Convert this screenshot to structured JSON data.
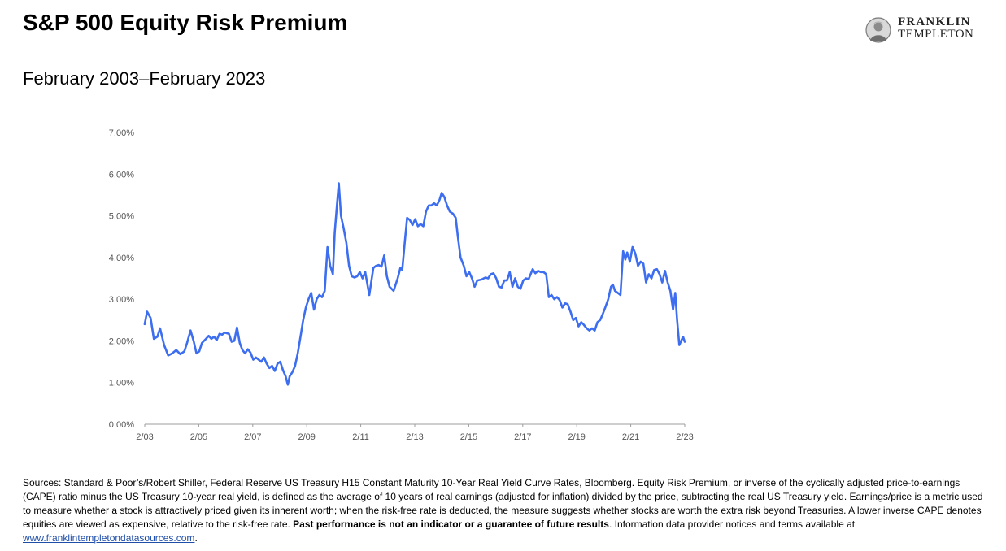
{
  "header": {
    "title": "S&P 500 Equity Risk Premium",
    "subtitle": "February 2003–February 2023"
  },
  "logo": {
    "line1": "FRANKLIN",
    "line2": "TEMPLETON",
    "icon": "franklin-medallion-icon"
  },
  "colors": {
    "line": "#3d6ef0",
    "axis": "#9e9e9e",
    "text": "#555555"
  },
  "chart_data": {
    "type": "line",
    "title": "",
    "xlabel": "",
    "ylabel": "",
    "ylim": [
      0,
      7
    ],
    "y_ticks": [
      "0.00%",
      "1.00%",
      "2.00%",
      "3.00%",
      "4.00%",
      "5.00%",
      "6.00%",
      "7.00%"
    ],
    "x_ticks": [
      "2/03",
      "2/05",
      "2/07",
      "2/09",
      "2/11",
      "2/13",
      "2/15",
      "2/17",
      "2/19",
      "2/21",
      "2/23"
    ],
    "xlim": [
      2003.083,
      2023.083
    ],
    "grid": false,
    "legend": "none",
    "series": [
      {
        "values": [
          [
            2003.08,
            2.4
          ],
          [
            2003.17,
            2.7
          ],
          [
            2003.3,
            2.55
          ],
          [
            2003.42,
            2.05
          ],
          [
            2003.55,
            2.1
          ],
          [
            2003.65,
            2.3
          ],
          [
            2003.8,
            1.9
          ],
          [
            2003.95,
            1.65
          ],
          [
            2004.1,
            1.7
          ],
          [
            2004.25,
            1.78
          ],
          [
            2004.4,
            1.68
          ],
          [
            2004.55,
            1.75
          ],
          [
            2004.65,
            1.95
          ],
          [
            2004.78,
            2.25
          ],
          [
            2004.9,
            1.98
          ],
          [
            2005.0,
            1.7
          ],
          [
            2005.1,
            1.75
          ],
          [
            2005.2,
            1.95
          ],
          [
            2005.35,
            2.05
          ],
          [
            2005.45,
            2.12
          ],
          [
            2005.55,
            2.05
          ],
          [
            2005.65,
            2.1
          ],
          [
            2005.75,
            2.02
          ],
          [
            2005.85,
            2.17
          ],
          [
            2005.95,
            2.15
          ],
          [
            2006.05,
            2.2
          ],
          [
            2006.2,
            2.17
          ],
          [
            2006.3,
            1.98
          ],
          [
            2006.4,
            2.0
          ],
          [
            2006.5,
            2.32
          ],
          [
            2006.6,
            1.95
          ],
          [
            2006.7,
            1.78
          ],
          [
            2006.8,
            1.7
          ],
          [
            2006.9,
            1.8
          ],
          [
            2007.0,
            1.72
          ],
          [
            2007.1,
            1.55
          ],
          [
            2007.2,
            1.6
          ],
          [
            2007.3,
            1.55
          ],
          [
            2007.4,
            1.5
          ],
          [
            2007.5,
            1.6
          ],
          [
            2007.6,
            1.45
          ],
          [
            2007.7,
            1.35
          ],
          [
            2007.8,
            1.4
          ],
          [
            2007.9,
            1.28
          ],
          [
            2008.0,
            1.45
          ],
          [
            2008.1,
            1.5
          ],
          [
            2008.2,
            1.3
          ],
          [
            2008.3,
            1.15
          ],
          [
            2008.38,
            0.95
          ],
          [
            2008.45,
            1.15
          ],
          [
            2008.55,
            1.25
          ],
          [
            2008.65,
            1.4
          ],
          [
            2008.75,
            1.7
          ],
          [
            2008.85,
            2.1
          ],
          [
            2008.95,
            2.5
          ],
          [
            2009.05,
            2.8
          ],
          [
            2009.15,
            3.0
          ],
          [
            2009.25,
            3.15
          ],
          [
            2009.35,
            2.75
          ],
          [
            2009.45,
            3.0
          ],
          [
            2009.55,
            3.1
          ],
          [
            2009.65,
            3.05
          ],
          [
            2009.75,
            3.2
          ],
          [
            2009.85,
            4.25
          ],
          [
            2009.95,
            3.8
          ],
          [
            2010.05,
            3.6
          ],
          [
            2010.12,
            4.6
          ],
          [
            2010.2,
            5.25
          ],
          [
            2010.27,
            5.78
          ],
          [
            2010.35,
            5.0
          ],
          [
            2010.45,
            4.7
          ],
          [
            2010.55,
            4.35
          ],
          [
            2010.65,
            3.8
          ],
          [
            2010.75,
            3.55
          ],
          [
            2010.85,
            3.52
          ],
          [
            2010.95,
            3.55
          ],
          [
            2011.05,
            3.65
          ],
          [
            2011.15,
            3.5
          ],
          [
            2011.25,
            3.65
          ],
          [
            2011.4,
            3.1
          ],
          [
            2011.55,
            3.75
          ],
          [
            2011.65,
            3.8
          ],
          [
            2011.75,
            3.82
          ],
          [
            2011.85,
            3.78
          ],
          [
            2011.95,
            4.05
          ],
          [
            2012.05,
            3.55
          ],
          [
            2012.15,
            3.3
          ],
          [
            2012.3,
            3.2
          ],
          [
            2012.45,
            3.5
          ],
          [
            2012.55,
            3.75
          ],
          [
            2012.62,
            3.7
          ],
          [
            2012.72,
            4.4
          ],
          [
            2012.8,
            4.95
          ],
          [
            2012.9,
            4.9
          ],
          [
            2013.0,
            4.78
          ],
          [
            2013.1,
            4.92
          ],
          [
            2013.2,
            4.75
          ],
          [
            2013.3,
            4.8
          ],
          [
            2013.4,
            4.75
          ],
          [
            2013.5,
            5.1
          ],
          [
            2013.6,
            5.25
          ],
          [
            2013.7,
            5.25
          ],
          [
            2013.8,
            5.3
          ],
          [
            2013.9,
            5.25
          ],
          [
            2014.0,
            5.38
          ],
          [
            2014.08,
            5.55
          ],
          [
            2014.18,
            5.45
          ],
          [
            2014.28,
            5.25
          ],
          [
            2014.38,
            5.1
          ],
          [
            2014.5,
            5.05
          ],
          [
            2014.6,
            4.95
          ],
          [
            2014.68,
            4.5
          ],
          [
            2014.78,
            4.0
          ],
          [
            2014.9,
            3.8
          ],
          [
            2015.0,
            3.55
          ],
          [
            2015.1,
            3.65
          ],
          [
            2015.2,
            3.5
          ],
          [
            2015.3,
            3.3
          ],
          [
            2015.4,
            3.45
          ],
          [
            2015.55,
            3.47
          ],
          [
            2015.7,
            3.52
          ],
          [
            2015.8,
            3.5
          ],
          [
            2015.9,
            3.6
          ],
          [
            2016.0,
            3.62
          ],
          [
            2016.1,
            3.5
          ],
          [
            2016.2,
            3.3
          ],
          [
            2016.3,
            3.28
          ],
          [
            2016.4,
            3.45
          ],
          [
            2016.5,
            3.45
          ],
          [
            2016.6,
            3.65
          ],
          [
            2016.7,
            3.3
          ],
          [
            2016.8,
            3.5
          ],
          [
            2016.9,
            3.3
          ],
          [
            2017.0,
            3.25
          ],
          [
            2017.1,
            3.45
          ],
          [
            2017.2,
            3.5
          ],
          [
            2017.3,
            3.48
          ],
          [
            2017.45,
            3.72
          ],
          [
            2017.55,
            3.62
          ],
          [
            2017.65,
            3.68
          ],
          [
            2017.75,
            3.65
          ],
          [
            2017.85,
            3.65
          ],
          [
            2017.95,
            3.6
          ],
          [
            2018.05,
            3.05
          ],
          [
            2018.15,
            3.1
          ],
          [
            2018.25,
            3.0
          ],
          [
            2018.35,
            3.05
          ],
          [
            2018.45,
            2.98
          ],
          [
            2018.55,
            2.8
          ],
          [
            2018.65,
            2.9
          ],
          [
            2018.75,
            2.88
          ],
          [
            2018.85,
            2.7
          ],
          [
            2018.95,
            2.5
          ],
          [
            2019.05,
            2.55
          ],
          [
            2019.15,
            2.35
          ],
          [
            2019.25,
            2.45
          ],
          [
            2019.35,
            2.38
          ],
          [
            2019.45,
            2.3
          ],
          [
            2019.55,
            2.25
          ],
          [
            2019.65,
            2.3
          ],
          [
            2019.75,
            2.25
          ],
          [
            2019.85,
            2.45
          ],
          [
            2019.95,
            2.5
          ],
          [
            2020.05,
            2.65
          ],
          [
            2020.15,
            2.82
          ],
          [
            2020.25,
            3.0
          ],
          [
            2020.35,
            3.3
          ],
          [
            2020.42,
            3.35
          ],
          [
            2020.5,
            3.2
          ],
          [
            2020.6,
            3.15
          ],
          [
            2020.7,
            3.1
          ],
          [
            2020.8,
            4.15
          ],
          [
            2020.88,
            3.95
          ],
          [
            2020.95,
            4.12
          ],
          [
            2021.05,
            3.9
          ],
          [
            2021.15,
            4.25
          ],
          [
            2021.25,
            4.1
          ],
          [
            2021.35,
            3.8
          ],
          [
            2021.45,
            3.9
          ],
          [
            2021.55,
            3.85
          ],
          [
            2021.65,
            3.4
          ],
          [
            2021.75,
            3.6
          ],
          [
            2021.85,
            3.5
          ],
          [
            2021.95,
            3.7
          ],
          [
            2022.05,
            3.72
          ],
          [
            2022.15,
            3.6
          ],
          [
            2022.25,
            3.4
          ],
          [
            2022.35,
            3.68
          ],
          [
            2022.45,
            3.4
          ],
          [
            2022.55,
            3.2
          ],
          [
            2022.65,
            2.75
          ],
          [
            2022.73,
            3.15
          ],
          [
            2022.8,
            2.5
          ],
          [
            2022.88,
            1.9
          ],
          [
            2022.95,
            2.0
          ],
          [
            2023.02,
            2.1
          ],
          [
            2023.083,
            1.98
          ]
        ]
      }
    ]
  },
  "footer": {
    "sources_main": "Sources: Standard & Poor’s/Robert Shiller, Federal Reserve US Treasury H15 Constant Maturity 10-Year Real Yield Curve Rates, Bloomberg.  Equity Risk Premium, or inverse of the cyclically adjusted price-to-earnings (CAPE) ratio minus the US Treasury 10-year real yield, is defined as the average of 10 years of real earnings (adjusted for inflation) divided by the price, subtracting the real US Treasury yield. Earnings/price is a metric used to measure whether a stock is attractively priced given its inherent worth; when the risk-free rate is deducted, the measure suggests whether stocks are worth the extra risk beyond Treasuries. A lower inverse CAPE denotes equities are viewed as expensive, relative to the risk-free rate. ",
    "disclaimer_bold": "Past performance is not an indicator or a guarantee of future results",
    "after_bold": ". Information data provider notices and terms available at ",
    "link_text": "www.franklintempletondatasources.com",
    "end": "."
  }
}
